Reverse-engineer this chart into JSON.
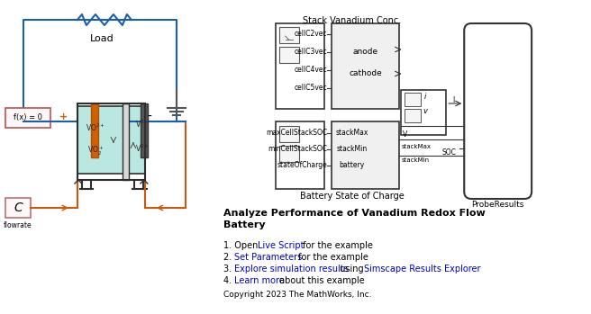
{
  "title": "Analyze Performance of Vanadium Redox Flow\nBattery",
  "copyright": "Copyright 2023 The MathWorks, Inc.",
  "bg_color": "#ffffff",
  "link_color": "#0000CC",
  "text_color": "#000000",
  "simulink_label_stack": "Stack Vanadium Conc.",
  "simulink_label_batt": "Battery State of Charge",
  "simulink_label_probe": "ProbeResults",
  "stack_conc_inputs": [
    "cellC2vec",
    "cellC3vec",
    "cellC4vec",
    "cellC5vec"
  ],
  "stack_conc_outputs": [
    "anode",
    "cathode"
  ],
  "batt_inputs": [
    "maxCellStackSOC",
    "minCellStackSOC",
    "stateOfCharge"
  ],
  "batt_outputs": [
    "stackMax",
    "stackMin",
    "battery"
  ],
  "tank_fill_color": "#b8e8e0",
  "tank_border_color": "#2e2e2e",
  "wire_color_blue": "#1a5fa8",
  "wire_color_red": "#c85a10",
  "positive_color": "#d06000",
  "block_border": "#333333"
}
